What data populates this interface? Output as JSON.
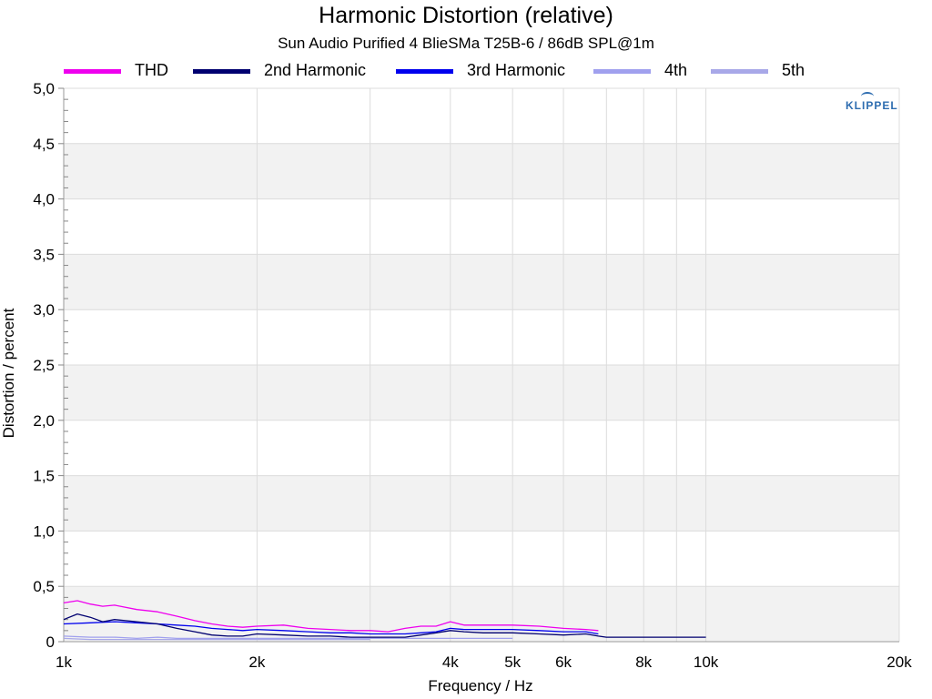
{
  "chart_data": {
    "type": "line",
    "title": "Harmonic Distortion (relative)",
    "subtitle": "Sun Audio Purified 4 BlieSMa T25B-6 / 86dB SPL@1m",
    "xlabel": "Frequency / Hz",
    "ylabel": "Distortion / percent",
    "x_scale": "log",
    "xlim": [
      1000,
      20000
    ],
    "ylim": [
      0,
      5
    ],
    "x_ticks": [
      {
        "value": 1000,
        "label": "1k"
      },
      {
        "value": 2000,
        "label": "2k"
      },
      {
        "value": 4000,
        "label": "4k"
      },
      {
        "value": 5000,
        "label": "5k"
      },
      {
        "value": 6000,
        "label": "6k"
      },
      {
        "value": 8000,
        "label": "8k"
      },
      {
        "value": 10000,
        "label": "10k"
      },
      {
        "value": 20000,
        "label": "20k"
      }
    ],
    "y_ticks": [
      {
        "value": 0,
        "label": "0"
      },
      {
        "value": 0.5,
        "label": "0,5"
      },
      {
        "value": 1.0,
        "label": "1,0"
      },
      {
        "value": 1.5,
        "label": "1,5"
      },
      {
        "value": 2.0,
        "label": "2,0"
      },
      {
        "value": 2.5,
        "label": "2,5"
      },
      {
        "value": 3.0,
        "label": "3,0"
      },
      {
        "value": 3.5,
        "label": "3,5"
      },
      {
        "value": 4.0,
        "label": "4,0"
      },
      {
        "value": 4.5,
        "label": "4,5"
      },
      {
        "value": 5.0,
        "label": "5,0"
      }
    ],
    "grid": true,
    "legend_position": "top",
    "series": [
      {
        "name": "THD",
        "color": "#ee00ee",
        "x": [
          1000,
          1050,
          1100,
          1150,
          1200,
          1300,
          1400,
          1500,
          1600,
          1700,
          1800,
          1900,
          2000,
          2200,
          2400,
          2600,
          2800,
          3000,
          3200,
          3400,
          3600,
          3800,
          4000,
          4200,
          4500,
          5000,
          5500,
          6000,
          6500,
          6800
        ],
        "y": [
          0.35,
          0.37,
          0.34,
          0.32,
          0.33,
          0.29,
          0.27,
          0.23,
          0.19,
          0.16,
          0.14,
          0.13,
          0.14,
          0.15,
          0.12,
          0.11,
          0.1,
          0.1,
          0.09,
          0.12,
          0.14,
          0.14,
          0.18,
          0.15,
          0.15,
          0.15,
          0.14,
          0.12,
          0.11,
          0.1
        ]
      },
      {
        "name": "2nd Harmonic",
        "color": "#000070",
        "x": [
          1000,
          1050,
          1100,
          1150,
          1200,
          1300,
          1400,
          1500,
          1600,
          1700,
          1800,
          1900,
          2000,
          2200,
          2400,
          2600,
          2800,
          3000,
          3200,
          3400,
          3600,
          3800,
          4000,
          4200,
          4500,
          5000,
          5500,
          6000,
          6500,
          6800,
          7000,
          8000,
          9000,
          10000
        ],
        "y": [
          0.2,
          0.25,
          0.22,
          0.18,
          0.2,
          0.18,
          0.16,
          0.12,
          0.09,
          0.06,
          0.05,
          0.05,
          0.07,
          0.06,
          0.05,
          0.05,
          0.04,
          0.04,
          0.04,
          0.04,
          0.06,
          0.08,
          0.1,
          0.09,
          0.08,
          0.08,
          0.07,
          0.06,
          0.07,
          0.05,
          0.04,
          0.04,
          0.04,
          0.04
        ]
      },
      {
        "name": "3rd Harmonic",
        "color": "#0000ee",
        "x": [
          1000,
          1100,
          1200,
          1300,
          1400,
          1500,
          1600,
          1700,
          1800,
          1900,
          2000,
          2200,
          2400,
          2600,
          2800,
          3000,
          3200,
          3400,
          3600,
          3800,
          4000,
          4200,
          4500,
          5000,
          5500,
          6000,
          6500,
          6800
        ],
        "y": [
          0.16,
          0.17,
          0.18,
          0.17,
          0.16,
          0.15,
          0.14,
          0.12,
          0.11,
          0.1,
          0.11,
          0.1,
          0.09,
          0.08,
          0.08,
          0.07,
          0.07,
          0.07,
          0.08,
          0.09,
          0.12,
          0.11,
          0.11,
          0.11,
          0.1,
          0.09,
          0.09,
          0.07
        ]
      },
      {
        "name": "4th",
        "color": "#a0a0ee",
        "x": [
          1000,
          1100,
          1200,
          1300,
          1400,
          1500,
          1600,
          1800,
          2000,
          2500,
          3000,
          3500,
          4000,
          4500,
          5000
        ],
        "y": [
          0.05,
          0.04,
          0.04,
          0.03,
          0.04,
          0.03,
          0.03,
          0.03,
          0.03,
          0.03,
          0.03,
          0.03,
          0.03,
          0.03,
          0.03
        ]
      },
      {
        "name": "5th",
        "color": "#a8a8e8",
        "x": [
          1000,
          1100,
          1200,
          1300,
          1400,
          1500,
          1600,
          1800,
          2000,
          2500,
          3000
        ],
        "y": [
          0.03,
          0.02,
          0.02,
          0.02,
          0.02,
          0.02,
          0.02,
          0.02,
          0.02,
          0.02,
          0.02
        ]
      }
    ],
    "logo_text": "KLIPPEL"
  }
}
